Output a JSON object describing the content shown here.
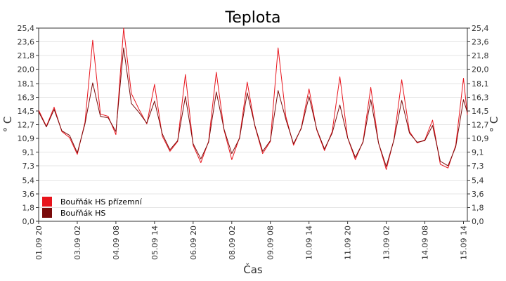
{
  "chart_data": {
    "type": "line",
    "title": "Teplota",
    "xlabel": "Čas",
    "ylabel": "° C",
    "ylabel_right": "° C",
    "ylim": [
      0.0,
      25.4
    ],
    "y_ticks": [
      "0,0",
      "1,8",
      "3,6",
      "5,4",
      "7,3",
      "9,1",
      "10,9",
      "12,7",
      "14,5",
      "16,3",
      "18,1",
      "20,0",
      "21,8",
      "23,6",
      "25,4"
    ],
    "x_ticks": [
      "01.09 20",
      "03.09 02",
      "04.09 08",
      "05.09 14",
      "06.09 20",
      "08.09 02",
      "09.09 08",
      "10.09 14",
      "11.09 20",
      "13.09 02",
      "14.09 08",
      "15.09 14"
    ],
    "grid": true,
    "legend_position": "bottom-left",
    "series": [
      {
        "name": "Bouřňák HS přízemní",
        "color": "#e8141c",
        "points": [
          [
            "01.09 20",
            14.6
          ],
          [
            "02.09 02",
            12.5
          ],
          [
            "02.09 08",
            15.0
          ],
          [
            "02.09 14",
            11.8
          ],
          [
            "02.09 20",
            11.0
          ],
          [
            "03.09 02",
            8.8
          ],
          [
            "03.09 08",
            13.0
          ],
          [
            "03.09 14",
            23.8
          ],
          [
            "03.09 20",
            14.1
          ],
          [
            "04.09 02",
            13.8
          ],
          [
            "04.09 08",
            11.4
          ],
          [
            "04.09 14",
            25.4
          ],
          [
            "04.09 20",
            16.8
          ],
          [
            "05.09 02",
            14.7
          ],
          [
            "05.09 08",
            12.8
          ],
          [
            "05.09 14",
            18.0
          ],
          [
            "05.09 20",
            11.2
          ],
          [
            "06.09 02",
            9.2
          ],
          [
            "06.09 08",
            10.5
          ],
          [
            "06.09 14",
            19.3
          ],
          [
            "06.09 20",
            10.0
          ],
          [
            "07.09 02",
            7.7
          ],
          [
            "07.09 08",
            10.5
          ],
          [
            "07.09 14",
            19.6
          ],
          [
            "07.09 20",
            12.0
          ],
          [
            "08.09 02",
            8.1
          ],
          [
            "08.09 08",
            11.0
          ],
          [
            "08.09 14",
            18.3
          ],
          [
            "08.09 20",
            12.5
          ],
          [
            "09.09 02",
            8.9
          ],
          [
            "09.09 08",
            10.5
          ],
          [
            "09.09 14",
            22.8
          ],
          [
            "09.09 20",
            13.8
          ],
          [
            "10.09 02",
            10.0
          ],
          [
            "10.09 08",
            12.3
          ],
          [
            "10.09 14",
            17.4
          ],
          [
            "10.09 20",
            12.0
          ],
          [
            "11.09 02",
            9.3
          ],
          [
            "11.09 08",
            11.8
          ],
          [
            "11.09 14",
            19.0
          ],
          [
            "11.09 20",
            11.0
          ],
          [
            "12.09 02",
            8.1
          ],
          [
            "12.09 08",
            10.5
          ],
          [
            "12.09 14",
            17.6
          ],
          [
            "12.09 20",
            10.3
          ],
          [
            "13.09 02",
            6.8
          ],
          [
            "13.09 08",
            10.8
          ],
          [
            "13.09 14",
            18.6
          ],
          [
            "13.09 20",
            11.8
          ],
          [
            "14.09 02",
            10.3
          ],
          [
            "14.09 08",
            10.7
          ],
          [
            "14.09 14",
            13.3
          ],
          [
            "14.09 20",
            7.5
          ],
          [
            "15.09 02",
            7.0
          ],
          [
            "15.09 08",
            10.0
          ],
          [
            "15.09 14",
            18.8
          ],
          [
            "15.09 17",
            14.0
          ]
        ]
      },
      {
        "name": "Bouřňák HS",
        "color": "#7a0a0a",
        "points": [
          [
            "01.09 20",
            14.4
          ],
          [
            "02.09 02",
            12.4
          ],
          [
            "02.09 08",
            14.7
          ],
          [
            "02.09 14",
            11.9
          ],
          [
            "02.09 20",
            11.3
          ],
          [
            "03.09 02",
            9.0
          ],
          [
            "03.09 08",
            12.8
          ],
          [
            "03.09 14",
            18.2
          ],
          [
            "03.09 20",
            13.8
          ],
          [
            "04.09 02",
            13.6
          ],
          [
            "04.09 08",
            11.8
          ],
          [
            "04.09 14",
            22.8
          ],
          [
            "04.09 20",
            15.5
          ],
          [
            "05.09 02",
            14.3
          ],
          [
            "05.09 08",
            12.9
          ],
          [
            "05.09 14",
            15.8
          ],
          [
            "05.09 20",
            11.5
          ],
          [
            "06.09 02",
            9.4
          ],
          [
            "06.09 08",
            10.6
          ],
          [
            "06.09 14",
            16.4
          ],
          [
            "06.09 20",
            10.2
          ],
          [
            "07.09 02",
            8.2
          ],
          [
            "07.09 08",
            10.4
          ],
          [
            "07.09 14",
            17.0
          ],
          [
            "07.09 20",
            12.1
          ],
          [
            "08.09 02",
            8.9
          ],
          [
            "08.09 08",
            10.9
          ],
          [
            "08.09 14",
            16.9
          ],
          [
            "08.09 20",
            12.6
          ],
          [
            "09.09 02",
            9.2
          ],
          [
            "09.09 08",
            10.6
          ],
          [
            "09.09 14",
            17.2
          ],
          [
            "09.09 20",
            13.4
          ],
          [
            "10.09 02",
            10.2
          ],
          [
            "10.09 08",
            12.2
          ],
          [
            "10.09 14",
            16.4
          ],
          [
            "10.09 20",
            12.1
          ],
          [
            "11.09 02",
            9.5
          ],
          [
            "11.09 08",
            11.6
          ],
          [
            "11.09 14",
            15.3
          ],
          [
            "11.09 20",
            11.0
          ],
          [
            "12.09 02",
            8.4
          ],
          [
            "12.09 08",
            10.4
          ],
          [
            "12.09 14",
            16.0
          ],
          [
            "12.09 20",
            10.3
          ],
          [
            "13.09 02",
            7.2
          ],
          [
            "13.09 08",
            10.7
          ],
          [
            "13.09 14",
            15.9
          ],
          [
            "13.09 20",
            11.6
          ],
          [
            "14.09 02",
            10.4
          ],
          [
            "14.09 08",
            10.6
          ],
          [
            "14.09 14",
            12.6
          ],
          [
            "14.09 20",
            7.9
          ],
          [
            "15.09 02",
            7.3
          ],
          [
            "15.09 08",
            9.8
          ],
          [
            "15.09 14",
            16.0
          ],
          [
            "15.09 17",
            14.3
          ]
        ]
      }
    ]
  }
}
